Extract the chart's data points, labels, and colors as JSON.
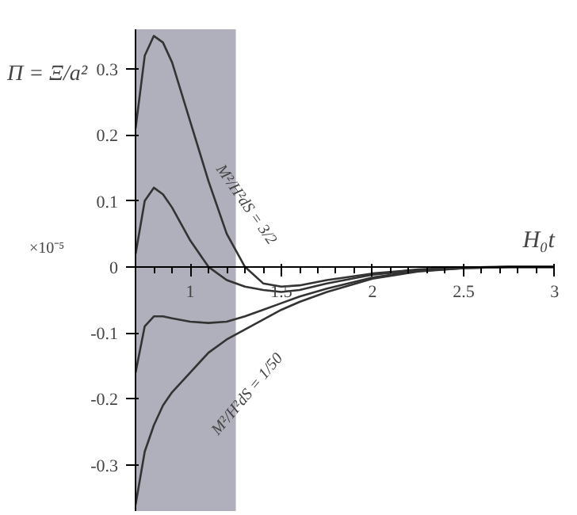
{
  "chart_data": {
    "type": "line",
    "xlabel": "H₀t",
    "ylabel": "Π = Ξ/a²",
    "x": [
      0.7,
      0.75,
      0.8,
      0.85,
      0.9,
      1.0,
      1.1,
      1.2,
      1.3,
      1.4,
      1.5,
      1.6,
      1.75,
      2.0,
      2.25,
      2.5,
      2.75,
      3.0
    ],
    "series": [
      {
        "color": "#333333",
        "values": [
          0.21,
          0.32,
          0.35,
          0.34,
          0.31,
          0.22,
          0.13,
          0.05,
          0.0,
          -0.025,
          -0.03,
          -0.028,
          -0.02,
          -0.01,
          -0.004,
          -0.001,
          0.0,
          0.0
        ]
      },
      {
        "color": "#333333",
        "values": [
          0.02,
          0.1,
          0.12,
          0.11,
          0.09,
          0.04,
          0.0,
          -0.02,
          -0.03,
          -0.035,
          -0.038,
          -0.035,
          -0.025,
          -0.012,
          -0.005,
          -0.001,
          0.0,
          0.0
        ]
      },
      {
        "color": "#333333",
        "values": [
          -0.16,
          -0.09,
          -0.075,
          -0.075,
          -0.078,
          -0.083,
          -0.085,
          -0.083,
          -0.075,
          -0.065,
          -0.055,
          -0.045,
          -0.033,
          -0.016,
          -0.006,
          -0.002,
          0.0,
          0.0
        ]
      },
      {
        "color": "#333333",
        "values": [
          -0.36,
          -0.28,
          -0.24,
          -0.21,
          -0.19,
          -0.16,
          -0.13,
          -0.11,
          -0.095,
          -0.08,
          -0.065,
          -0.053,
          -0.038,
          -0.018,
          -0.007,
          -0.002,
          0.0,
          0.0
        ]
      }
    ],
    "xlim": [
      0.7,
      3.0
    ],
    "ylim": [
      -0.37,
      0.36
    ],
    "xticks": [
      1,
      1.5,
      2,
      2.5,
      3
    ],
    "yticks": [
      {
        "value": -0.3,
        "label": "-0.3"
      },
      {
        "value": -0.2,
        "label": "-0.2"
      },
      {
        "value": -0.1,
        "label": "-0.1"
      },
      0,
      0.1,
      0.2,
      0.3
    ],
    "bands": [
      {
        "axis": "x",
        "from": 0.7,
        "to": 1.25,
        "color": "#9c9cab"
      }
    ],
    "annotations": [
      "×10⁻⁵",
      "M²/H²dS = 3/2",
      "M²/H²dS = 1/50"
    ],
    "grid": false,
    "marker": "none",
    "line_style": "solid"
  }
}
